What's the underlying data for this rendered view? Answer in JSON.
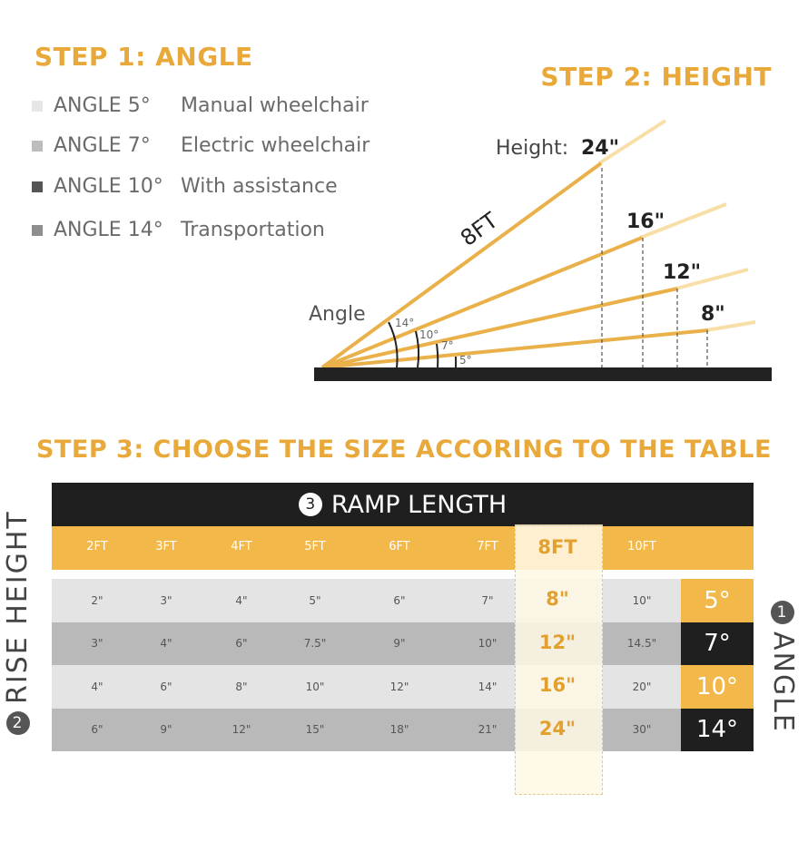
{
  "step1": {
    "title": "STEP 1: ANGLE",
    "items": [
      {
        "angle": "ANGLE 5°",
        "use": "Manual wheelchair",
        "color": "#e6e6e6"
      },
      {
        "angle": "ANGLE 7°",
        "use": "Electric wheelchair",
        "color": "#bdbdbd"
      },
      {
        "angle": "ANGLE 10°",
        "use": "With assistance",
        "color": "#555555"
      },
      {
        "angle": "ANGLE 14°",
        "use": "Transportation",
        "color": "#8e8e8e"
      }
    ]
  },
  "step2": {
    "title": "STEP 2: HEIGHT",
    "height_label": "Height:",
    "heights": [
      "24\"",
      "16\"",
      "12\"",
      "8\""
    ],
    "length_label": "8FT",
    "angle_label": "Angle",
    "angles": [
      "14°",
      "10°",
      "7°",
      "5°"
    ]
  },
  "step3": {
    "title": "STEP 3: CHOOSE THE SIZE ACCORING TO THE TABLE",
    "header_num": "3",
    "header": "RAMP LENGTH",
    "rise_num": "2",
    "rise_label": "RISE HEIGHT",
    "angle_num": "1",
    "angle_label": "ANGLE",
    "columns": [
      "2FT",
      "3FT",
      "4FT",
      "5FT",
      "6FT",
      "7FT",
      "8FT",
      "10FT"
    ],
    "highlight_column": "8FT",
    "rows": [
      {
        "angle": "5°",
        "values": [
          "2\"",
          "3\"",
          "4\"",
          "5\"",
          "6\"",
          "7\"",
          "8\"",
          "10\""
        ]
      },
      {
        "angle": "7°",
        "values": [
          "3\"",
          "4\"",
          "6\"",
          "7.5\"",
          "9\"",
          "10\"",
          "12\"",
          "14.5\""
        ]
      },
      {
        "angle": "10°",
        "values": [
          "4\"",
          "6\"",
          "8\"",
          "10\"",
          "12\"",
          "14\"",
          "16\"",
          "20\""
        ]
      },
      {
        "angle": "14°",
        "values": [
          "6\"",
          "9\"",
          "12\"",
          "15\"",
          "18\"",
          "21\"",
          "24\"",
          "30\""
        ]
      }
    ],
    "colors": {
      "gold": "#f2b84a",
      "dark": "#1f1f1f",
      "light_row": "#e4e4e4",
      "dark_row": "#b9b9b9"
    }
  }
}
